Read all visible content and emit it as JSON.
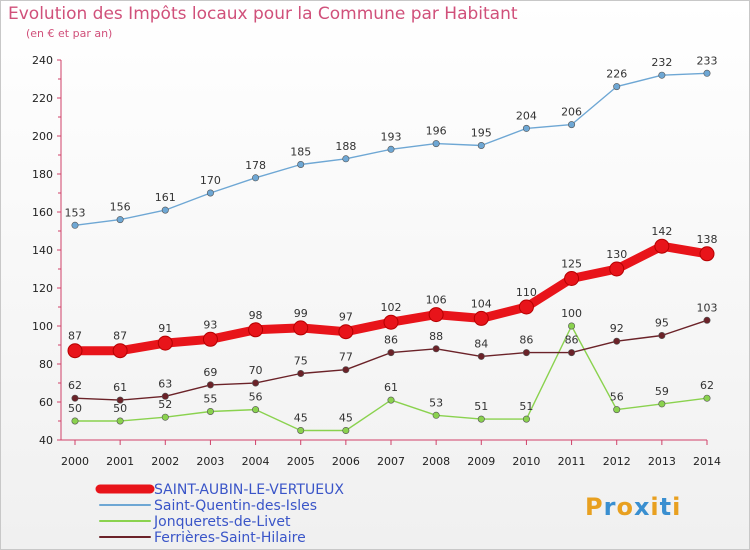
{
  "header": {
    "title": "Evolution des Impôts locaux pour la Commune par Habitant",
    "subtitle": "(en € et par an)"
  },
  "brand": {
    "letters": [
      "P",
      "r",
      "o",
      "x",
      "i",
      "t",
      "i"
    ],
    "colors": [
      "#e8a020",
      "#3a8fd0",
      "#e8a020",
      "#3a8fd0",
      "#e8a020",
      "#3a8fd0",
      "#e8a020"
    ]
  },
  "chart_data": {
    "type": "line",
    "title": "Evolution des Impôts locaux pour la Commune par Habitant",
    "subtitle": "(en € et par an)",
    "xlabel": "",
    "ylabel": "",
    "ylim": [
      40,
      240
    ],
    "yticks": [
      40,
      60,
      80,
      100,
      120,
      140,
      160,
      180,
      200,
      220,
      240
    ],
    "grid": false,
    "legend_position": "bottom-left",
    "x": [
      "2000",
      "2001",
      "2002",
      "2003",
      "2004",
      "2005",
      "2006",
      "2007",
      "2008",
      "2009",
      "2010",
      "2011",
      "2012",
      "2013",
      "2014"
    ],
    "series": [
      {
        "name": "SAINT-AUBIN-LE-VERTUEUX",
        "color": "#e8141a",
        "values": [
          87,
          87,
          91,
          93,
          98,
          99,
          97,
          102,
          106,
          104,
          110,
          125,
          130,
          142,
          138
        ]
      },
      {
        "name": "Saint-Quentin-des-Isles",
        "color": "#6ea7d4",
        "values": [
          153,
          156,
          161,
          170,
          178,
          185,
          188,
          193,
          196,
          195,
          204,
          206,
          226,
          232,
          233
        ]
      },
      {
        "name": "Jonquerets-de-Livet",
        "color": "#8ad24e",
        "values": [
          50,
          50,
          52,
          55,
          56,
          45,
          45,
          61,
          53,
          51,
          51,
          100,
          56,
          59,
          62
        ]
      },
      {
        "name": "Ferrières-Saint-Hilaire",
        "color": "#6b2228",
        "values": [
          62,
          61,
          63,
          69,
          70,
          75,
          77,
          86,
          88,
          84,
          86,
          86,
          92,
          95,
          103
        ]
      }
    ]
  }
}
